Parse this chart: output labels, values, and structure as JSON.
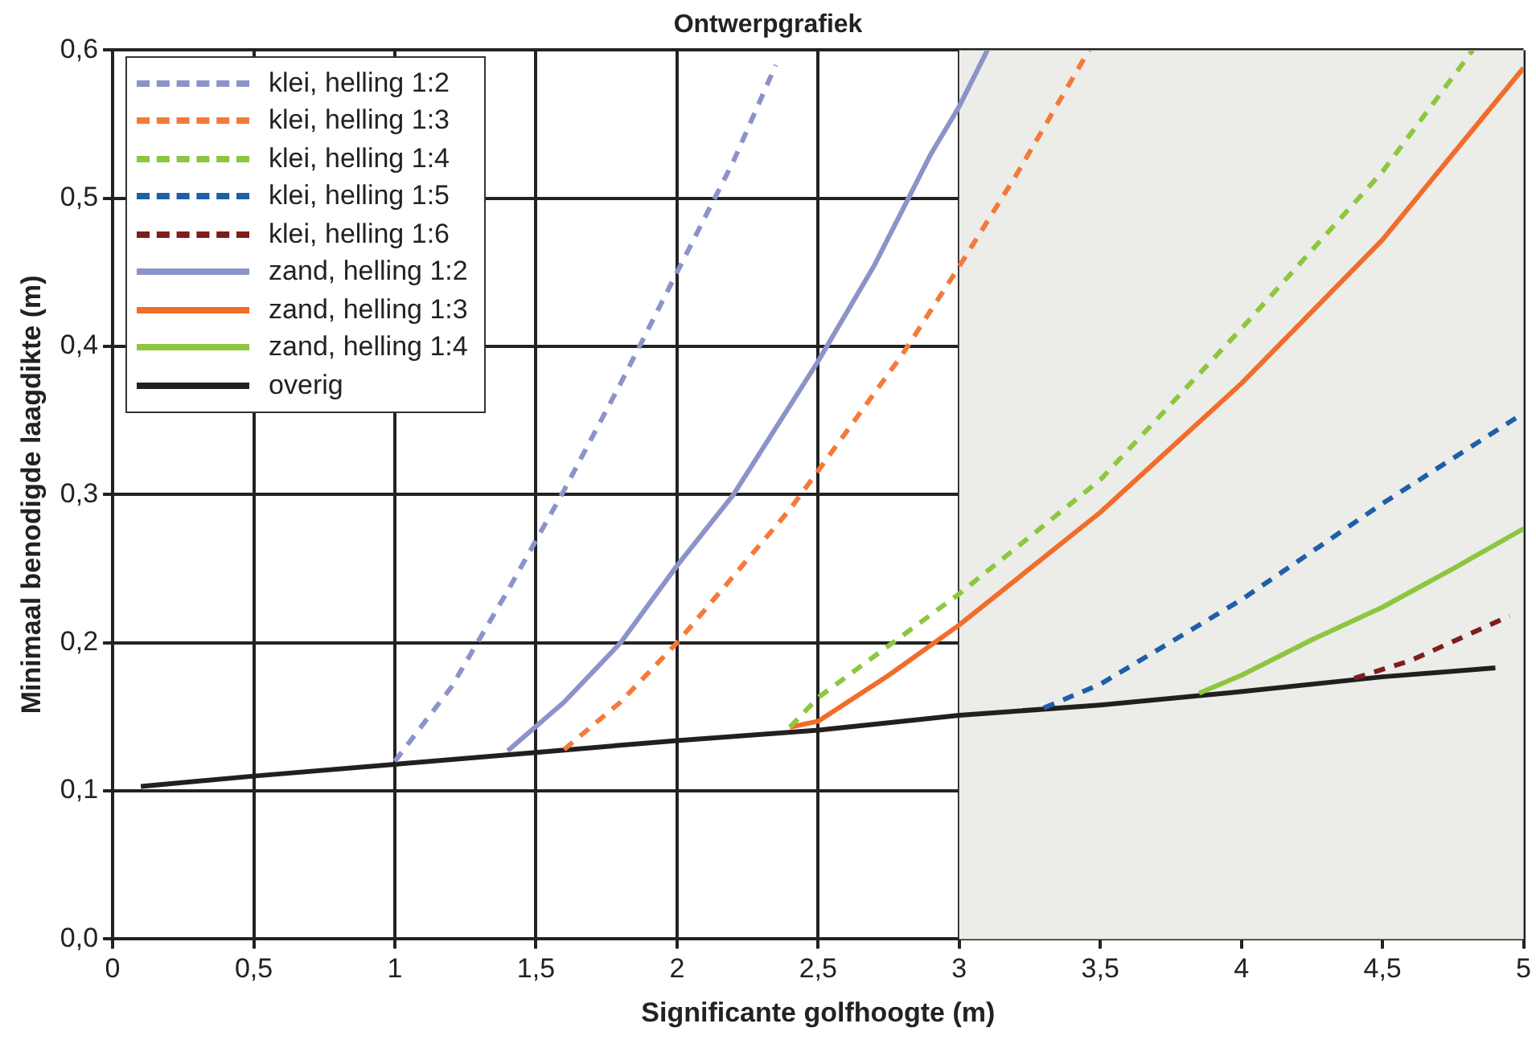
{
  "chart_data": {
    "type": "line",
    "title": "Ontwerpgrafiek",
    "xlabel": "Significante golfhoogte (m)",
    "ylabel": "Minimaal benodigde laagdikte (m)",
    "xlim": [
      0,
      5
    ],
    "ylim": [
      0,
      0.6
    ],
    "xticks": [
      0,
      {
        "value": 0.5,
        "label": "0,5"
      },
      1,
      {
        "value": 1.5,
        "label": "1,5"
      },
      2,
      {
        "value": 2.5,
        "label": "2,5"
      },
      3,
      {
        "value": 3.5,
        "label": "3,5"
      },
      4,
      {
        "value": 4.5,
        "label": "4,5"
      },
      5
    ],
    "yticks": [
      {
        "value": 0,
        "label": "0,0"
      },
      {
        "value": 0.1,
        "label": "0,1"
      },
      {
        "value": 0.2,
        "label": "0,2"
      },
      {
        "value": 0.3,
        "label": "0,3"
      },
      {
        "value": 0.4,
        "label": "0,4"
      },
      {
        "value": 0.5,
        "label": "0,5"
      },
      {
        "value": 0.6,
        "label": "0,6"
      }
    ],
    "grid": true,
    "legend": "top left",
    "marker": "none",
    "bands": [
      {
        "axis": "x",
        "from": 3,
        "to": 5,
        "color": "#ecece9"
      }
    ],
    "series": [
      {
        "name": "klei, helling 1:2",
        "color": "#8b93c9",
        "line_style": "dashed",
        "x": [
          1,
          1.2,
          1.4,
          1.6,
          1.8,
          2.0,
          2.2,
          2.35
        ],
        "values": [
          0.12,
          0.17,
          0.235,
          0.303,
          0.375,
          0.45,
          0.525,
          0.59
        ]
      },
      {
        "name": "klei, helling 1:3",
        "color": "#f47a3a",
        "line_style": "dashed",
        "x": [
          1.6,
          1.8,
          2.0,
          2.2,
          2.4,
          2.5,
          2.8,
          3.0,
          3.2,
          3.46
        ],
        "values": [
          0.128,
          0.16,
          0.2,
          0.245,
          0.29,
          0.316,
          0.395,
          0.454,
          0.515,
          0.6
        ]
      },
      {
        "name": "klei, helling 1:4",
        "color": "#8dc63f",
        "line_style": "dashed",
        "x": [
          2.4,
          2.5,
          3.0,
          3.5,
          4.0,
          4.5,
          4.82
        ],
        "values": [
          0.143,
          0.163,
          0.233,
          0.31,
          0.412,
          0.518,
          0.6
        ]
      },
      {
        "name": "klei, helling 1:5",
        "color": "#1f5fa8",
        "line_style": "dashed",
        "x": [
          3.3,
          3.5,
          4.0,
          4.5,
          5.0
        ],
        "values": [
          0.156,
          0.172,
          0.229,
          0.294,
          0.355
        ]
      },
      {
        "name": "klei, helling 1:6",
        "color": "#7f1d1d",
        "line_style": "dashed",
        "x": [
          4.4,
          4.6,
          4.95
        ],
        "values": [
          0.176,
          0.188,
          0.218
        ]
      },
      {
        "name": "zand, helling 1:2",
        "color": "#8b93c9",
        "line_style": "solid",
        "x": [
          1.4,
          1.6,
          1.8,
          2.0,
          2.2,
          2.4,
          2.5,
          2.7,
          2.9,
          3.0,
          3.1
        ],
        "values": [
          0.127,
          0.16,
          0.2,
          0.252,
          0.3,
          0.36,
          0.39,
          0.455,
          0.53,
          0.562,
          0.6
        ]
      },
      {
        "name": "zand, helling 1:3",
        "color": "#f26c2a",
        "line_style": "solid",
        "x": [
          2.4,
          2.5,
          2.75,
          3.0,
          3.5,
          4.0,
          4.5,
          5.0
        ],
        "values": [
          0.143,
          0.147,
          0.178,
          0.212,
          0.288,
          0.375,
          0.472,
          0.588
        ]
      },
      {
        "name": "zand, helling 1:4",
        "color": "#8dc63f",
        "line_style": "solid",
        "x": [
          3.85,
          4.0,
          4.25,
          4.5,
          4.75,
          5.0
        ],
        "values": [
          0.166,
          0.178,
          0.202,
          0.224,
          0.25,
          0.277
        ]
      },
      {
        "name": "overig",
        "color": "#231f20",
        "line_style": "solid",
        "x": [
          0.1,
          0.5,
          1,
          1.5,
          2,
          2.5,
          3,
          3.5,
          4,
          4.5,
          4.9
        ],
        "values": [
          0.103,
          0.11,
          0.118,
          0.126,
          0.134,
          0.141,
          0.151,
          0.158,
          0.167,
          0.177,
          0.183
        ]
      }
    ]
  }
}
